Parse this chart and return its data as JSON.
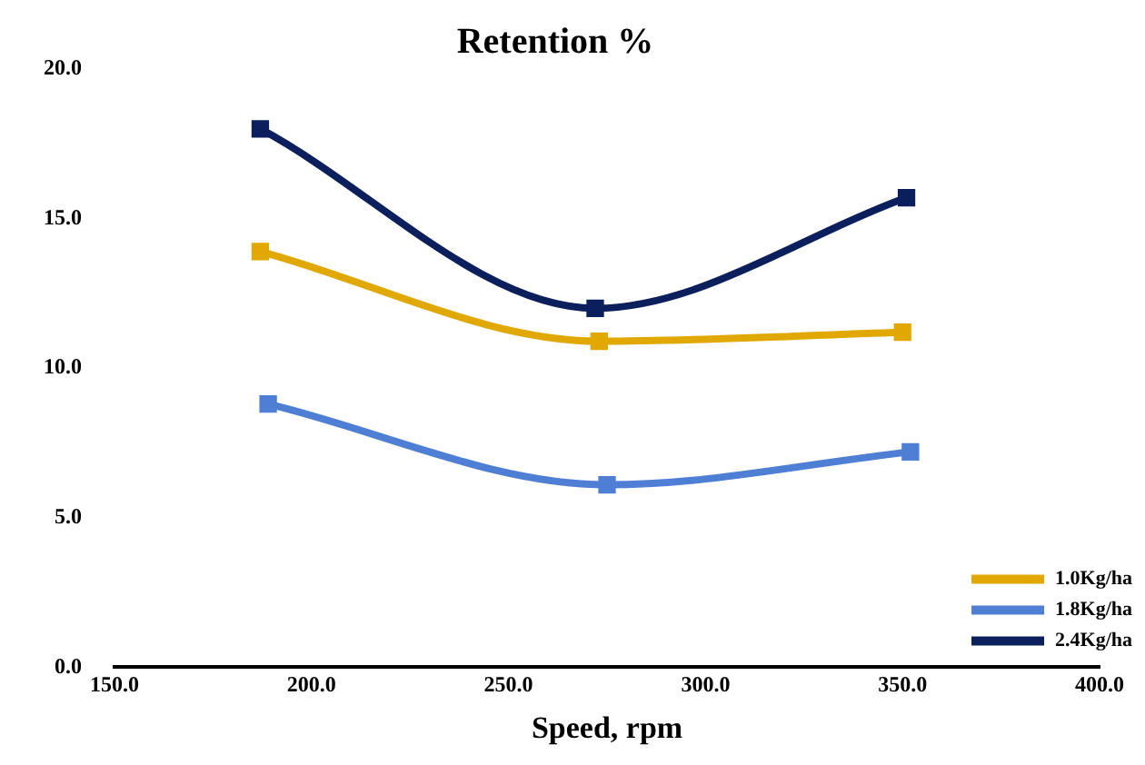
{
  "chart_data": {
    "type": "line",
    "title": "Retention %",
    "xlabel": "Speed, rpm",
    "xlim": [
      150,
      400
    ],
    "xticks": [
      {
        "value": 150,
        "label": "150.0"
      },
      {
        "value": 200,
        "label": "200.0"
      },
      {
        "value": 250,
        "label": "250.0"
      },
      {
        "value": 300,
        "label": "300.0"
      },
      {
        "value": 350,
        "label": "350.0"
      },
      {
        "value": 400,
        "label": "400.0"
      }
    ],
    "ylim": [
      0,
      20
    ],
    "yticks": [
      {
        "value": 0,
        "label": "0.0"
      },
      {
        "value": 5,
        "label": "5.0"
      },
      {
        "value": 10,
        "label": "10.0"
      },
      {
        "value": 15,
        "label": "15.0"
      },
      {
        "value": 20,
        "label": "20.0"
      }
    ],
    "grid": false,
    "legend": "bottom right",
    "marker": "square",
    "series": [
      {
        "name": "1.0Kg/ha",
        "color": "#e0a800",
        "x": [
          187,
          273,
          350
        ],
        "values": [
          13.9,
          10.9,
          11.2
        ]
      },
      {
        "name": "1.8Kg/ha",
        "color": "#4f7fd4",
        "x": [
          189,
          275,
          352
        ],
        "values": [
          8.8,
          6.1,
          7.2
        ]
      },
      {
        "name": "2.4Kg/ha",
        "color": "#0a1f5c",
        "x": [
          187,
          272,
          351
        ],
        "values": [
          18.0,
          12.0,
          15.7
        ]
      }
    ]
  }
}
